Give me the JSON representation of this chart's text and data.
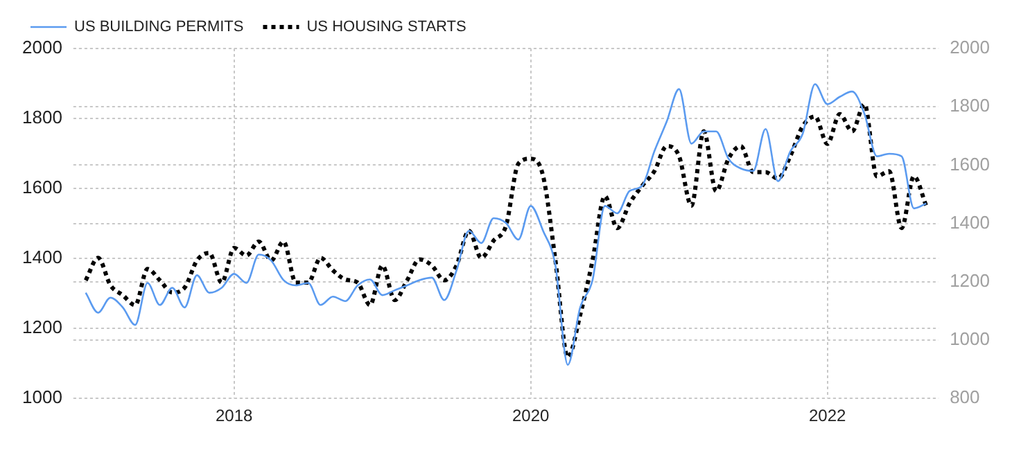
{
  "chart_data": {
    "type": "line",
    "legend": "top left",
    "grid": true,
    "marker": "none",
    "x": [
      "2017-01",
      "2017-02",
      "2017-03",
      "2017-04",
      "2017-05",
      "2017-06",
      "2017-07",
      "2017-08",
      "2017-09",
      "2017-10",
      "2017-11",
      "2017-12",
      "2018-01",
      "2018-02",
      "2018-03",
      "2018-04",
      "2018-05",
      "2018-06",
      "2018-07",
      "2018-08",
      "2018-09",
      "2018-10",
      "2018-11",
      "2018-12",
      "2019-01",
      "2019-02",
      "2019-03",
      "2019-04",
      "2019-05",
      "2019-06",
      "2019-07",
      "2019-08",
      "2019-09",
      "2019-10",
      "2019-11",
      "2019-12",
      "2020-01",
      "2020-02",
      "2020-03",
      "2020-04",
      "2020-05",
      "2020-06",
      "2020-07",
      "2020-08",
      "2020-09",
      "2020-10",
      "2020-11",
      "2020-12",
      "2021-01",
      "2021-02",
      "2021-03",
      "2021-04",
      "2021-05",
      "2021-06",
      "2021-07",
      "2021-08",
      "2021-09",
      "2021-10",
      "2021-11",
      "2021-12",
      "2022-01",
      "2022-02",
      "2022-03",
      "2022-04",
      "2022-05",
      "2022-06",
      "2022-07",
      "2022-08",
      "2022-09"
    ],
    "xlim": [
      "2016-12",
      "2022-10"
    ],
    "xticks": [
      {
        "value": "2018-01",
        "label": "2018"
      },
      {
        "value": "2020-01",
        "label": "2020"
      },
      {
        "value": "2022-01",
        "label": "2022"
      }
    ],
    "ylim": [
      1000,
      2000
    ],
    "yticks": [
      1000,
      1200,
      1400,
      1600,
      1800,
      2000
    ],
    "y2lim": [
      800,
      2000
    ],
    "y2ticks": [
      800,
      1000,
      1200,
      1400,
      1600,
      1800,
      2000
    ],
    "series": [
      {
        "name": "US BUILDING PERMITS",
        "color": "#5b9bf0",
        "line_style": "solid",
        "values": [
          1302,
          1245,
          1288,
          1260,
          1210,
          1330,
          1267,
          1316,
          1260,
          1352,
          1302,
          1316,
          1356,
          1330,
          1411,
          1394,
          1338,
          1323,
          1330,
          1267,
          1291,
          1278,
          1323,
          1340,
          1295,
          1309,
          1323,
          1338,
          1345,
          1281,
          1366,
          1479,
          1444,
          1515,
          1501,
          1454,
          1550,
          1479,
          1380,
          1096,
          1260,
          1338,
          1550,
          1529,
          1593,
          1607,
          1706,
          1791,
          1884,
          1728,
          1763,
          1763,
          1685,
          1657,
          1650,
          1770,
          1621,
          1706,
          1756,
          1898,
          1841,
          1862,
          1877,
          1813,
          1692,
          1699,
          1692,
          1543,
          1557
        ]
      },
      {
        "name": "US HOUSING STARTS",
        "color": "#000000",
        "line_style": "dotted",
        "axis": "y2",
        "values": [
          1205,
          1282,
          1188,
          1154,
          1120,
          1244,
          1205,
          1163,
          1180,
          1273,
          1299,
          1197,
          1316,
          1290,
          1338,
          1273,
          1338,
          1197,
          1197,
          1282,
          1239,
          1208,
          1197,
          1120,
          1256,
          1137,
          1205,
          1277,
          1256,
          1205,
          1256,
          1375,
          1282,
          1341,
          1392,
          1605,
          1622,
          1563,
          1273,
          941,
          1086,
          1273,
          1494,
          1384,
          1469,
          1528,
          1579,
          1665,
          1631,
          1461,
          1716,
          1511,
          1622,
          1665,
          1576,
          1576,
          1554,
          1631,
          1733,
          1767,
          1673,
          1775,
          1716,
          1809,
          1562,
          1579,
          1384,
          1562,
          1460
        ]
      }
    ]
  }
}
